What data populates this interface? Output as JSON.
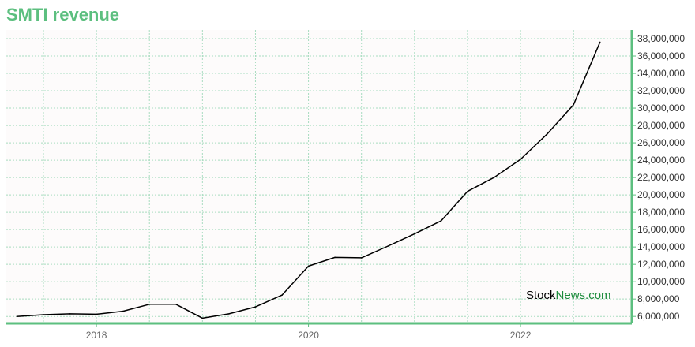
{
  "title": "SMTI revenue",
  "watermark": {
    "part1": "Stock",
    "part2": "News",
    "part3": ".com"
  },
  "colors": {
    "accent": "#5cbf7f",
    "line": "#000000",
    "grid": "#a8dcc0",
    "plot_bg": "#fdfbfb",
    "watermark_green": "#1a8a3a"
  },
  "chart_data": {
    "type": "line",
    "title": "SMTI revenue",
    "xlabel": "",
    "ylabel": "",
    "xlim": [
      2017.15,
      2023.05
    ],
    "ylim": [
      5200000,
      39000000
    ],
    "x_ticks": [
      2018,
      2020,
      2022
    ],
    "x_tick_labels": [
      "2018",
      "2020",
      "2022"
    ],
    "x_minor_ticks": [
      2017.5,
      2018.5,
      2019,
      2019.5,
      2020.5,
      2021,
      2021.5,
      2022.5
    ],
    "y_ticks": [
      6000000,
      8000000,
      10000000,
      12000000,
      14000000,
      16000000,
      18000000,
      20000000,
      22000000,
      24000000,
      26000000,
      28000000,
      30000000,
      32000000,
      34000000,
      36000000,
      38000000
    ],
    "y_tick_labels": [
      "6,000,000",
      "8,000,000",
      "10,000,000",
      "12,000,000",
      "14,000,000",
      "16,000,000",
      "18,000,000",
      "20,000,000",
      "22,000,000",
      "24,000,000",
      "26,000,000",
      "28,000,000",
      "30,000,000",
      "32,000,000",
      "34,000,000",
      "36,000,000",
      "38,000,000"
    ],
    "grid": true,
    "y_axis_side": "right",
    "series": [
      {
        "x": [
          2017.25,
          2017.5,
          2017.75,
          2018.0,
          2018.25,
          2018.5,
          2018.75,
          2019.0,
          2019.25,
          2019.5,
          2019.75,
          2020.0,
          2020.25,
          2020.5,
          2020.75,
          2021.0,
          2021.25,
          2021.5,
          2021.75,
          2022.0,
          2022.25,
          2022.5,
          2022.75
        ],
        "values": [
          6000000,
          6200000,
          6300000,
          6250000,
          6600000,
          7400000,
          7400000,
          5800000,
          6300000,
          7100000,
          8450000,
          11800000,
          12800000,
          12750000,
          14100000,
          15500000,
          17000000,
          20400000,
          22000000,
          24100000,
          27000000,
          30400000,
          37600000
        ]
      }
    ]
  }
}
